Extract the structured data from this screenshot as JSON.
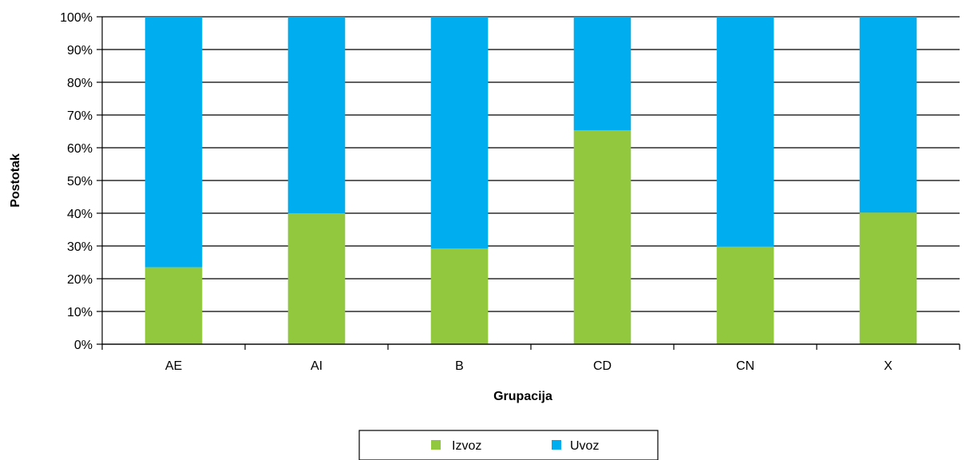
{
  "chart_data": {
    "type": "bar",
    "stacked": true,
    "categories": [
      "AE",
      "AI",
      "B",
      "CD",
      "CN",
      "X"
    ],
    "series": [
      {
        "name": "Izvoz",
        "color": "#92c83e",
        "values": [
          23.5,
          40,
          29.2,
          65.3,
          29.8,
          40.2
        ]
      },
      {
        "name": "Uvoz",
        "color": "#00adee",
        "values": [
          76.5,
          60,
          70.8,
          34.7,
          70.2,
          59.8
        ]
      }
    ],
    "xlabel": "Grupacija",
    "ylabel": "Postotak",
    "ylim": [
      0,
      100
    ],
    "yticks": [
      "0%",
      "10%",
      "20%",
      "30%",
      "40%",
      "50%",
      "60%",
      "70%",
      "80%",
      "90%",
      "100%"
    ],
    "grid": true,
    "legend_position": "bottom"
  }
}
